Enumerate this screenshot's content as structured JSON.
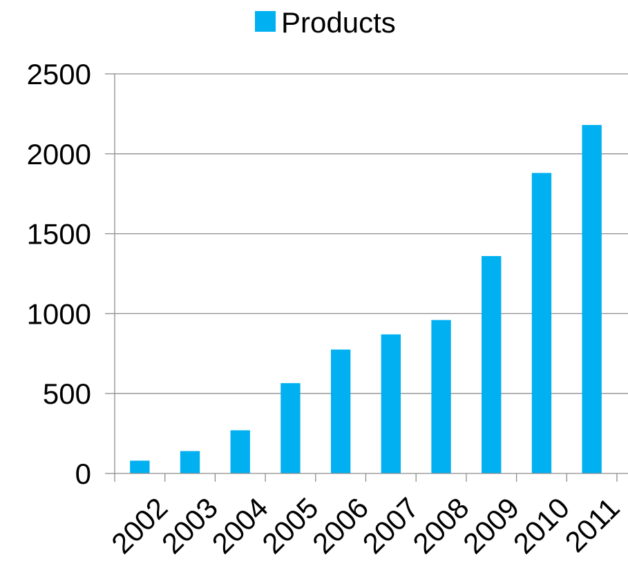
{
  "chart_data": {
    "type": "bar",
    "categories": [
      "2002",
      "2003",
      "2004",
      "2005",
      "2006",
      "2007",
      "2008",
      "2009",
      "2010",
      "2011"
    ],
    "series": [
      {
        "name": "Products",
        "values": [
          80,
          140,
          270,
          565,
          775,
          870,
          960,
          1360,
          1880,
          2180
        ],
        "color": "#00b0f0"
      }
    ],
    "ylim": [
      0,
      2500
    ],
    "yticks": [
      "0",
      "500",
      "1000",
      "1500",
      "2000",
      "2500"
    ],
    "grid": true,
    "legend": "top"
  }
}
